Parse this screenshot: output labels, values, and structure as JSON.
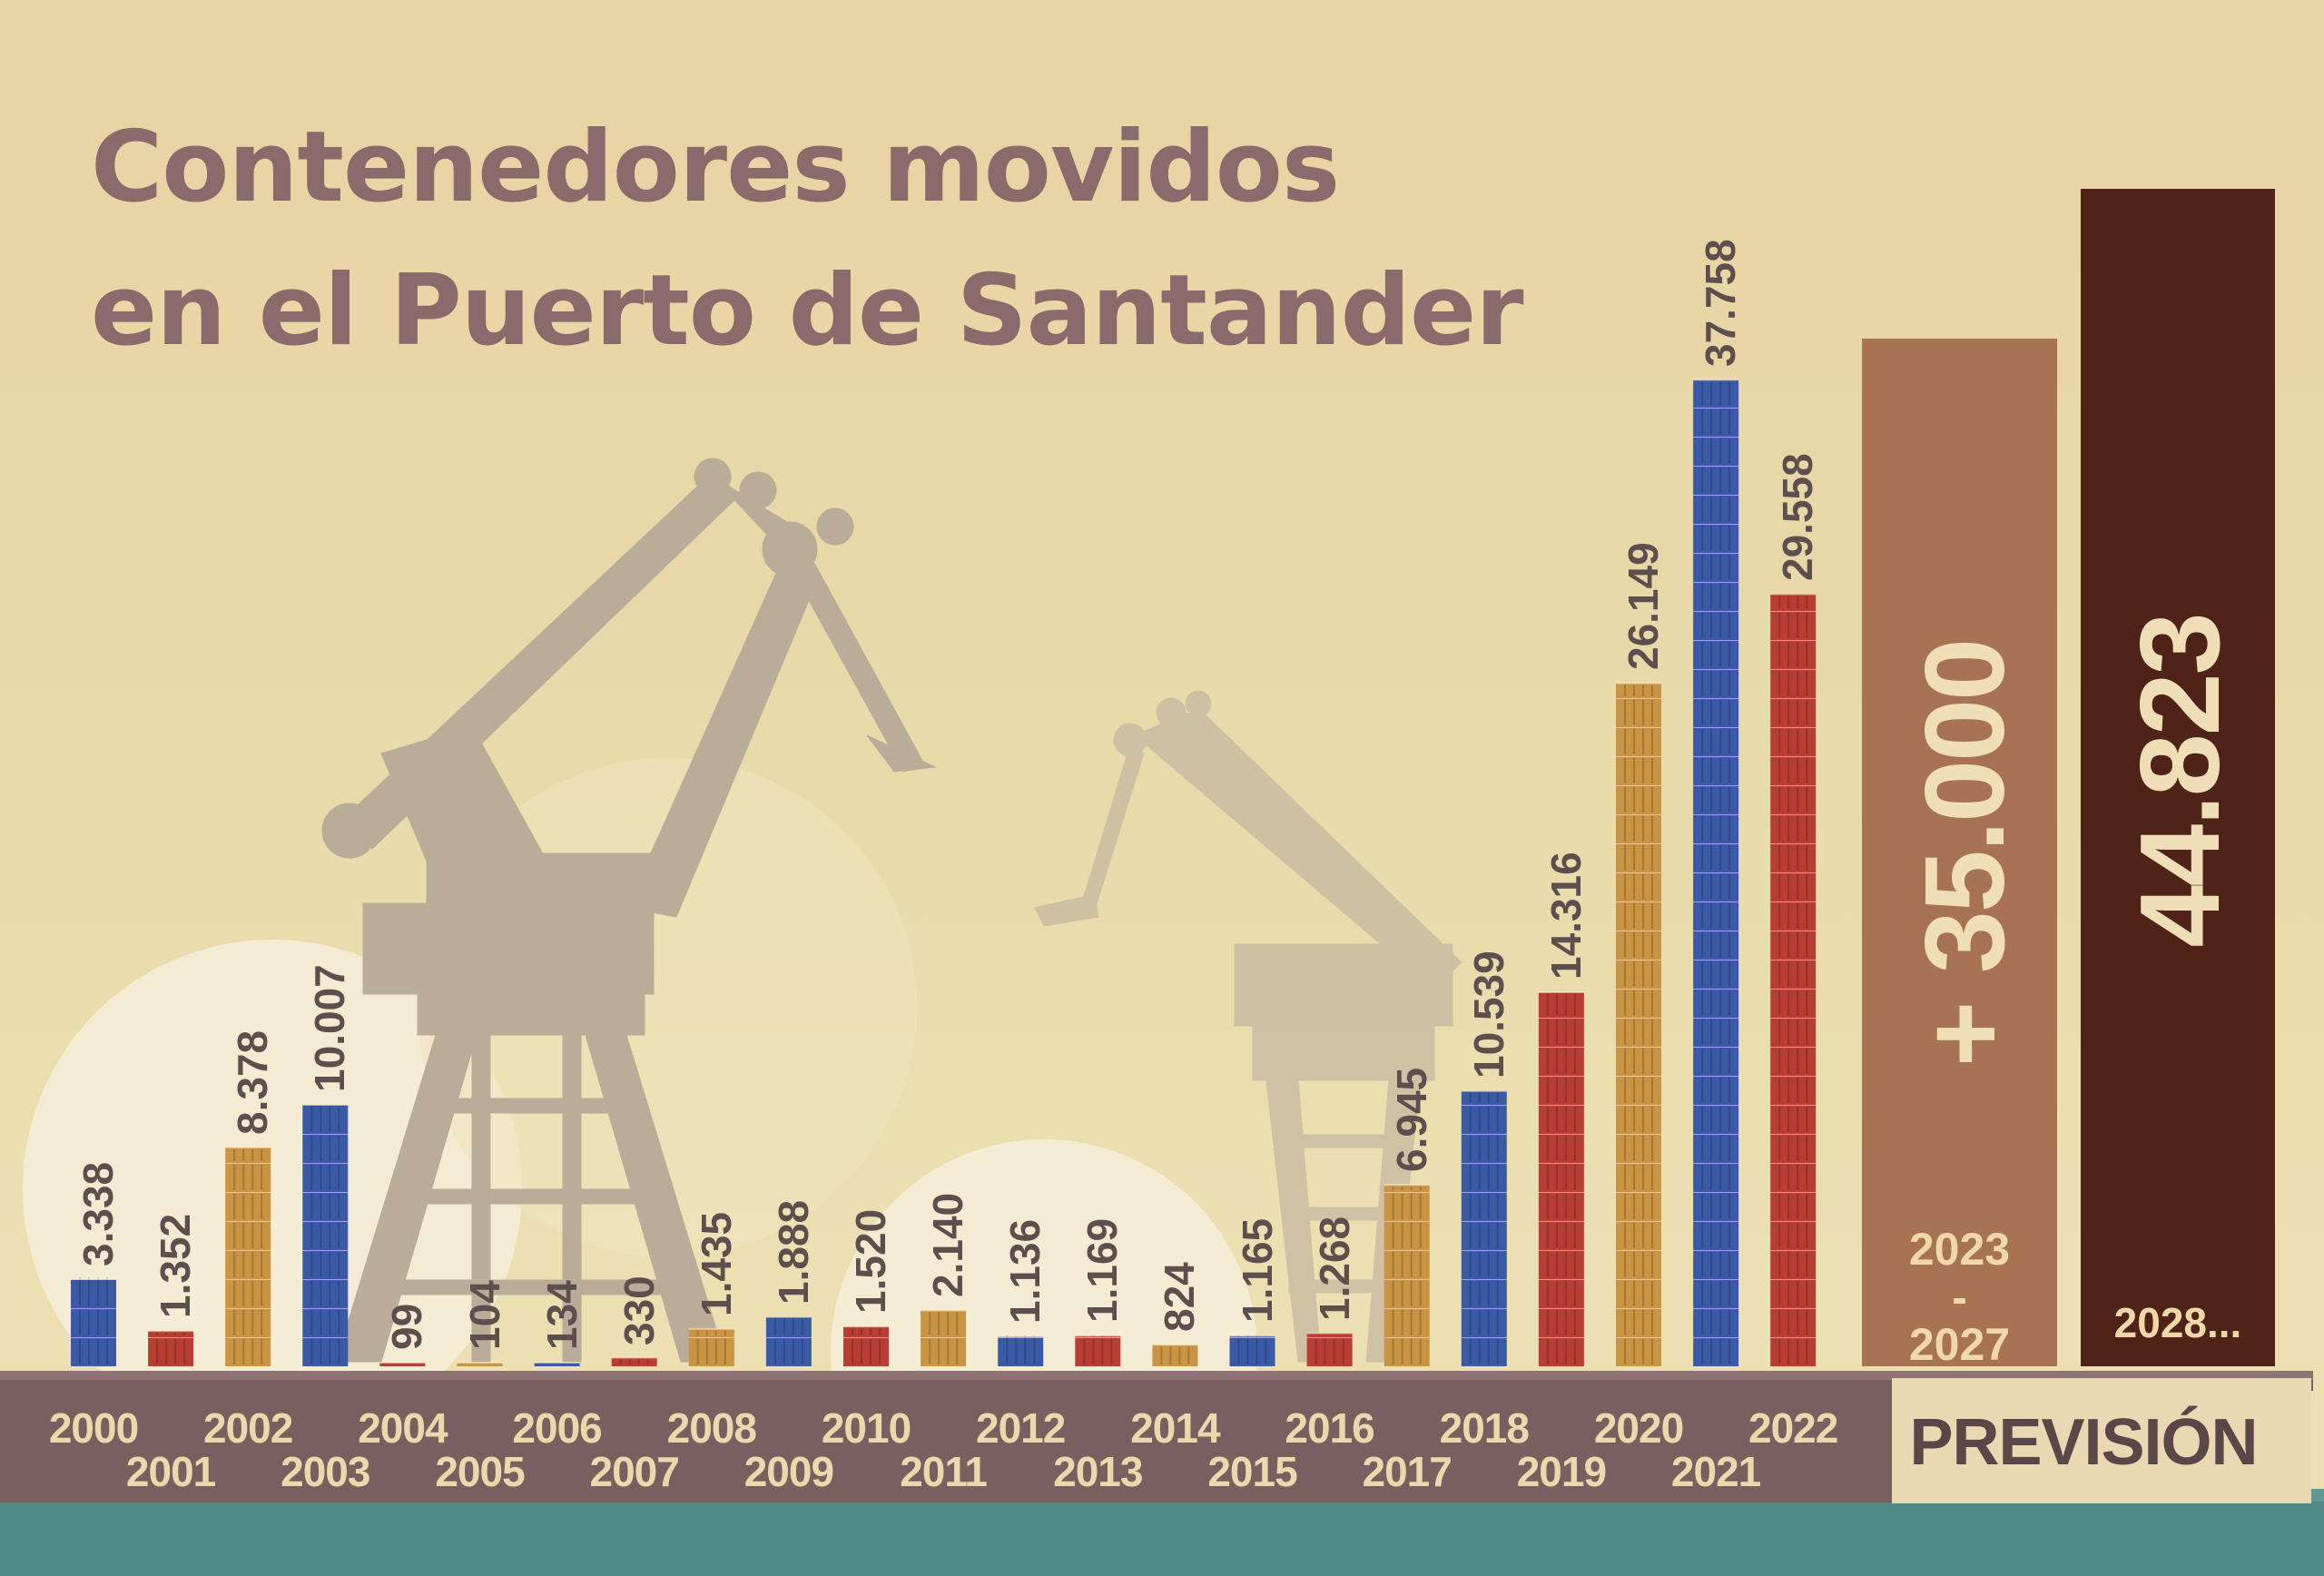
{
  "title": [
    "Contenedores movidos",
    "en el Puerto de Santander"
  ],
  "colors": {
    "background": "#e7d3a3",
    "title": "#8a6a6a",
    "container_blue": "#3b5aa6",
    "container_red": "#b83e33",
    "container_orange": "#c99444",
    "crane_silhouette": "#b9ad99",
    "dock": "#7a5f60",
    "water": "#4f8a87",
    "forecast_2023_2027": "#a87353",
    "forecast_2028": "#4f2317"
  },
  "chart_data": {
    "type": "bar",
    "title": "Contenedores movidos en el Puerto de Santander",
    "xlabel": "",
    "ylabel": "",
    "categories": [
      "2000",
      "2001",
      "2002",
      "2003",
      "2004",
      "2005",
      "2006",
      "2007",
      "2008",
      "2009",
      "2010",
      "2011",
      "2012",
      "2013",
      "2014",
      "2015",
      "2016",
      "2017",
      "2018",
      "2019",
      "2020",
      "2021",
      "2022"
    ],
    "values": [
      3338,
      1352,
      8378,
      10007,
      99,
      104,
      134,
      330,
      1435,
      1888,
      1520,
      2140,
      1136,
      1169,
      824,
      1165,
      1268,
      6945,
      10539,
      14316,
      26149,
      37758,
      29558
    ],
    "value_labels": [
      "3.338",
      "1.352",
      "8.378",
      "10.007",
      "99",
      "104",
      "134",
      "330",
      "1.435",
      "1.888",
      "1.520",
      "2.140",
      "1.136",
      "1.169",
      "824",
      "1.165",
      "1.268",
      "6.945",
      "10.539",
      "14.316",
      "26.149",
      "37.758",
      "29.558"
    ],
    "ylim": [
      0,
      45000
    ],
    "grid": false,
    "legend": "none",
    "forecast": {
      "heading": "PREVISIÓN",
      "items": [
        {
          "period": [
            "2023",
            "-",
            "2027"
          ],
          "value": 35000,
          "label": "+ 35.000"
        },
        {
          "period": [
            "2028..."
          ],
          "value": 44823,
          "label": "44.823"
        }
      ]
    }
  }
}
